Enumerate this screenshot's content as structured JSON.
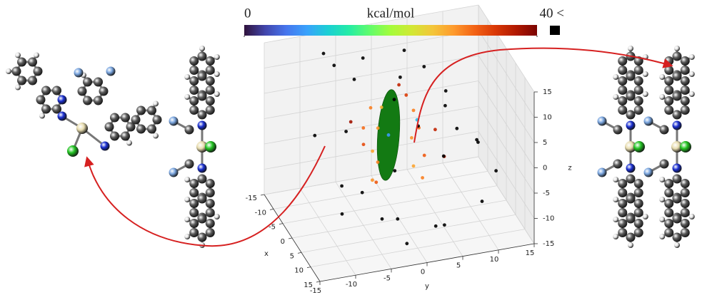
{
  "chart_data": {
    "type": "scatter3d",
    "colorbar": {
      "label": "kcal/mol",
      "lim": [
        0,
        40
      ],
      "ticks": [
        0,
        {
          "value": 40,
          "label": "40 <"
        }
      ],
      "over_color": "#000000"
    },
    "x": [
      0,
      2,
      -2,
      1,
      0,
      3,
      -1,
      0,
      2,
      0,
      1,
      -1,
      2,
      0,
      -2,
      1,
      4,
      -3,
      5,
      -4,
      0,
      0,
      -10,
      -8,
      -5,
      -12,
      6,
      8,
      10,
      12,
      -6,
      4,
      -3,
      7,
      9,
      3,
      -9,
      11,
      -7,
      5,
      2,
      -4,
      13,
      6,
      -11,
      0,
      8,
      -2,
      10,
      -5
    ],
    "y": [
      -4,
      -3.5,
      -4.5,
      -4,
      -3,
      -4,
      -3.5,
      -5,
      -3,
      2,
      2.5,
      2,
      3,
      2,
      1.5,
      3,
      4,
      -6,
      5,
      1,
      -1.5,
      2.5,
      -8,
      -3,
      2,
      -6,
      -9,
      6,
      -5,
      2,
      8,
      10,
      7,
      -7,
      4,
      -1,
      5,
      8,
      -10,
      -2,
      6,
      -7,
      -4,
      12,
      3,
      -8,
      -1,
      4,
      9,
      -5
    ],
    "z": [
      8,
      5,
      3,
      0,
      -3,
      -5,
      -7,
      1,
      9,
      6,
      3,
      0,
      -2,
      -5,
      8,
      -7,
      4,
      4,
      -1,
      9,
      2,
      4,
      14,
      13,
      15,
      10,
      8,
      6,
      -8,
      -10,
      2,
      0,
      -6,
      -4,
      -12,
      -13,
      -3,
      5,
      0,
      12,
      10,
      -9,
      3,
      -5,
      6,
      -12,
      -15,
      13,
      -8,
      11
    ],
    "energy": [
      30,
      29,
      31,
      28,
      30,
      32,
      29,
      33,
      27,
      30,
      31,
      29,
      32,
      28,
      34,
      30,
      36,
      38,
      37,
      36,
      8,
      10,
      50,
      50,
      50,
      50,
      50,
      50,
      50,
      50,
      50,
      50,
      50,
      50,
      50,
      50,
      50,
      50,
      50,
      50,
      50,
      50,
      50,
      50,
      50,
      50,
      50,
      50,
      50,
      50
    ],
    "xlabel": "x",
    "ylabel": "y",
    "zlabel": "z",
    "xlim": [
      -15,
      15
    ],
    "ylim": [
      -15,
      15
    ],
    "zlim": [
      -15,
      15
    ],
    "xticks": [
      -15,
      -10,
      -5,
      0,
      5,
      10,
      15
    ],
    "yticks": [
      -15,
      -10,
      -5,
      0,
      5,
      10,
      15
    ],
    "zticks": [
      -15,
      -10,
      -5,
      0,
      5,
      10,
      15
    ],
    "grid": true,
    "ellipsoid": {
      "center": [
        0,
        -1.5,
        2
      ],
      "radii": [
        1,
        1.5,
        9
      ],
      "color": "#137a13"
    }
  }
}
